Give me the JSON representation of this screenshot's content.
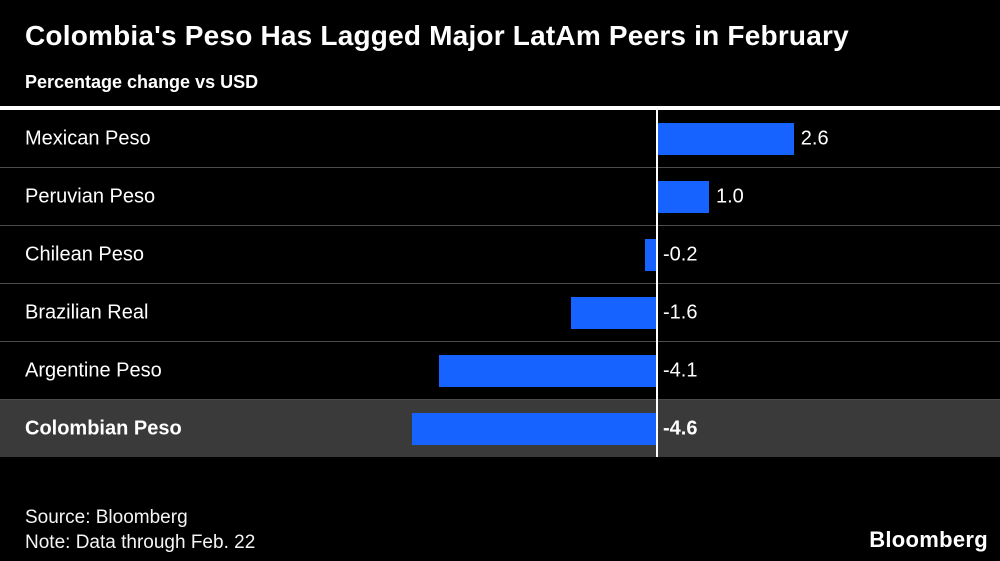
{
  "title": "Colombia's Peso Has Lagged Major LatAm Peers in February",
  "subtitle": "Percentage change vs USD",
  "footer": {
    "source": "Source: Bloomberg",
    "note": "Note: Data through Feb. 22",
    "logo": "Bloomberg"
  },
  "colors": {
    "bar": "#1763ff",
    "background": "#000000",
    "highlight_row": "#3a3a3a",
    "axis_line": "#ffffff",
    "separator": "#4a4a4a"
  },
  "chart_data": {
    "type": "bar",
    "orientation": "horizontal",
    "title": "Colombia's Peso Has Lagged Major LatAm Peers in February",
    "subtitle": "Percentage change vs USD",
    "xlabel": "Percentage change vs USD",
    "ylabel": "",
    "categories": [
      "Mexican Peso",
      "Peruvian Peso",
      "Chilean Peso",
      "Brazilian Real",
      "Argentine Peso",
      "Colombian Peso"
    ],
    "values": [
      2.6,
      1.0,
      -0.2,
      -1.6,
      -4.1,
      -4.6
    ],
    "value_labels": [
      "2.6",
      "1.0",
      "-0.2",
      "-1.6",
      "-4.1",
      "-4.6"
    ],
    "highlighted_category": "Colombian Peso",
    "xlim": [
      -6.5,
      6.5
    ],
    "grid": false,
    "legend": false,
    "zero_baseline": true
  }
}
